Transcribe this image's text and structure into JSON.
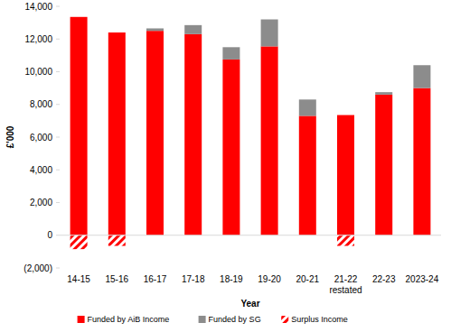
{
  "chart_data": {
    "type": "bar",
    "stacked": true,
    "grid": false,
    "legend": "bottom",
    "x_label": "Year",
    "y_label": "£'000",
    "categories": [
      "14-15",
      "15-16",
      "16-17",
      "17-18",
      "18-19",
      "19-20",
      "20-21",
      "21-22 restated",
      "22-23",
      "2023-24"
    ],
    "series": [
      {
        "name": "Funded by AiB Income",
        "color": "#ff0000",
        "values": [
          13350,
          12400,
          12500,
          12300,
          10750,
          11550,
          7300,
          7350,
          8600,
          9000
        ]
      },
      {
        "name": "Funded by SG",
        "color": "#8c8c8c",
        "values": [
          0,
          0,
          150,
          550,
          750,
          1650,
          1000,
          0,
          150,
          1400
        ]
      },
      {
        "name": "Surplus Income",
        "color": "#ff0000",
        "values": [
          -850,
          -650,
          0,
          0,
          0,
          0,
          0,
          -650,
          0,
          0
        ]
      }
    ],
    "ylim": [
      -2000,
      14000
    ],
    "yticks": [
      {
        "value": -2000,
        "label": "(2,000)"
      },
      0,
      {
        "value": 2000,
        "label": "2,000"
      },
      {
        "value": 4000,
        "label": "4,000"
      },
      {
        "value": 6000,
        "label": "6,000"
      },
      {
        "value": 8000,
        "label": "8,000"
      },
      {
        "value": 10000,
        "label": "10,000"
      },
      {
        "value": 12000,
        "label": "12,000"
      },
      {
        "value": 14000,
        "label": "14,000"
      }
    ]
  }
}
